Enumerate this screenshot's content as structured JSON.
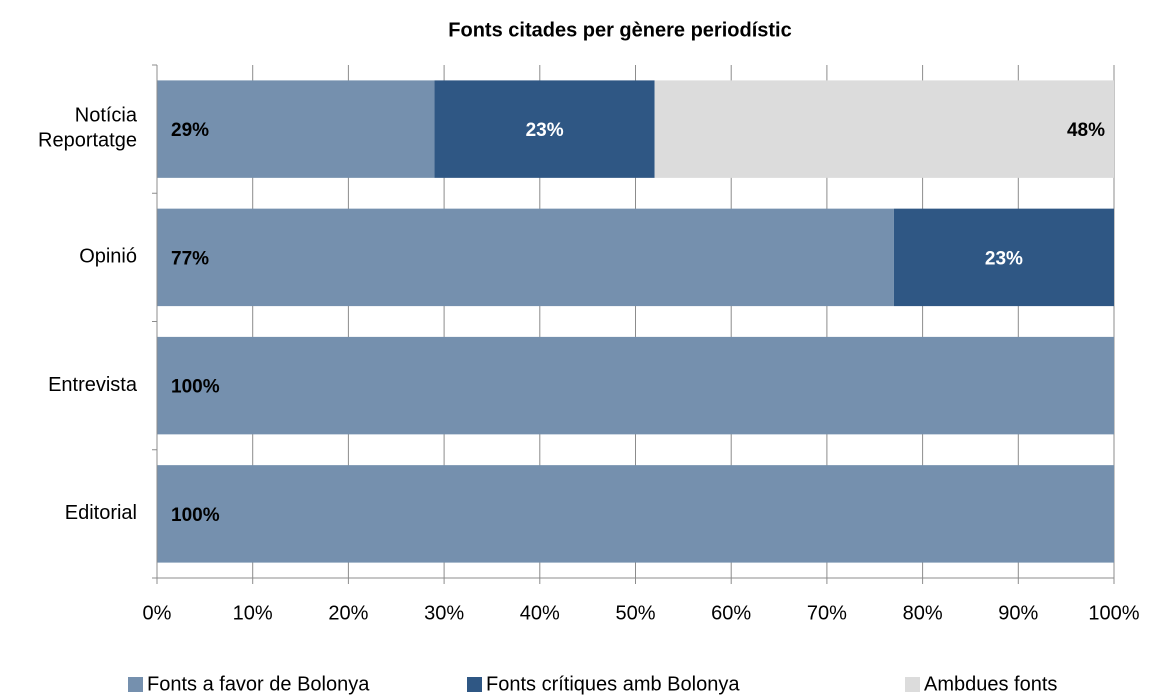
{
  "chart_data": {
    "type": "stacked_barh",
    "title": "Fonts citades per gènere periodístic",
    "categories": [
      "Notícia\nReportatge",
      "Opinió",
      "Entrevista",
      "Editorial"
    ],
    "series": [
      {
        "name": "Fonts a favor de Bolonya",
        "color": "#7590ae",
        "label_color": "#000000",
        "values": [
          29,
          77,
          100,
          100
        ],
        "value_labels": [
          "29%",
          "77%",
          "100%",
          "100%"
        ]
      },
      {
        "name": "Fonts crítiques amb Bolonya",
        "color": "#2f5784",
        "label_color": "#ffffff",
        "values": [
          23,
          23,
          0,
          0
        ],
        "value_labels": [
          "23%",
          "23%",
          null,
          null
        ]
      },
      {
        "name": "Ambdues fonts",
        "color": "#dcdcdc",
        "label_color": "#000000",
        "values": [
          48,
          0,
          0,
          0
        ],
        "value_labels": [
          "48%",
          null,
          null,
          null
        ]
      }
    ],
    "xlim": [
      0,
      100
    ],
    "xticks": [
      {
        "value": 0,
        "label": "0%"
      },
      {
        "value": 10,
        "label": "10%"
      },
      {
        "value": 20,
        "label": "20%"
      },
      {
        "value": 30,
        "label": "30%"
      },
      {
        "value": 40,
        "label": "40%"
      },
      {
        "value": 50,
        "label": "50%"
      },
      {
        "value": 60,
        "label": "60%"
      },
      {
        "value": 70,
        "label": "70%"
      },
      {
        "value": 80,
        "label": "80%"
      },
      {
        "value": 90,
        "label": "90%"
      },
      {
        "value": 100,
        "label": "100%"
      }
    ],
    "grid": true,
    "legend": "bottom"
  }
}
